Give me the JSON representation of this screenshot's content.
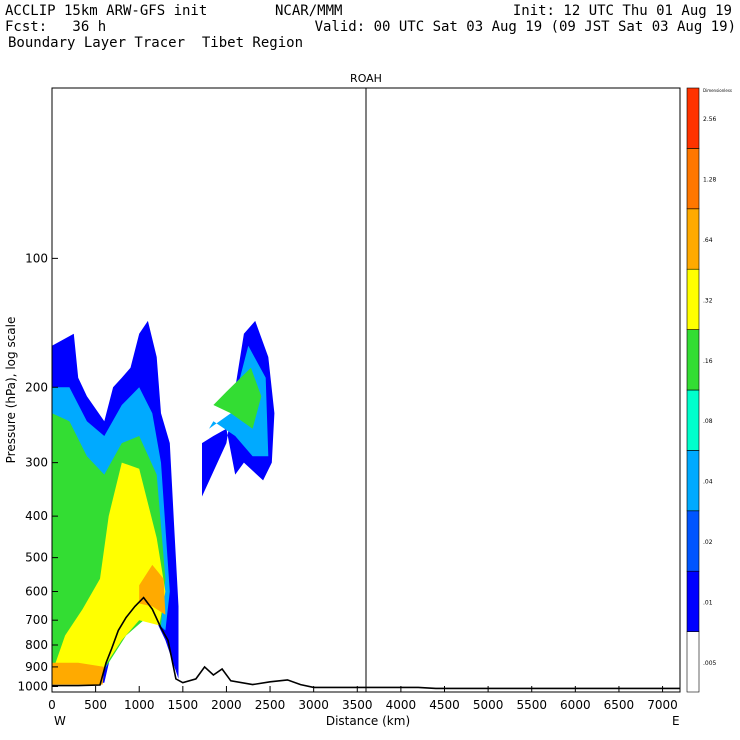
{
  "header": {
    "left_line1": "ACCLIP 15km ARW-GFS init",
    "left_line2": "Fcst:   36 h",
    "left_line3": "Boundary Layer Tracer  Tibet Region",
    "center_line1": "NCAR/MMM",
    "right_line1": "Init: 12 UTC Thu 01 Aug 19",
    "right_line2": "Valid: 00 UTC Sat 03 Aug 19 (09 JST Sat 03 Aug 19)"
  },
  "chart_data": {
    "type": "heatmap",
    "title": "ROAH",
    "xlabel": "Distance (km)",
    "ylabel": "Pressure (hPa), log scale",
    "x_ticks": [
      "0",
      "500",
      "1000",
      "1500",
      "2000",
      "2500",
      "3000",
      "3500",
      "4000",
      "4500",
      "5000",
      "5500",
      "6000",
      "6500",
      "7000"
    ],
    "y_ticks": [
      "100",
      "200",
      "300",
      "400",
      "500",
      "600",
      "700",
      "800",
      "900",
      "1000"
    ],
    "y_scale": "log",
    "xlim": [
      0,
      7200
    ],
    "ylim": [
      1030,
      40
    ],
    "x_end_labels": {
      "left": "W",
      "right": "E"
    },
    "marker_line_x": 3600,
    "colorbar": {
      "title": "Dimensionless",
      "levels": [
        ".005",
        ".01",
        ".02",
        ".04",
        ".08",
        ".16",
        ".32",
        ".64",
        "1.28",
        "2.56"
      ],
      "colors": [
        "#ffffff",
        "#0000ff",
        "#0055ff",
        "#00aaff",
        "#00ffcc",
        "#33dd33",
        "#ffff00",
        "#ffaa00",
        "#ff7700",
        "#ff3300"
      ]
    },
    "terrain_km_hpa": [
      [
        0,
        995
      ],
      [
        300,
        995
      ],
      [
        550,
        992
      ],
      [
        620,
        880
      ],
      [
        680,
        820
      ],
      [
        760,
        740
      ],
      [
        850,
        690
      ],
      [
        950,
        650
      ],
      [
        1050,
        620
      ],
      [
        1150,
        660
      ],
      [
        1250,
        730
      ],
      [
        1330,
        780
      ],
      [
        1420,
        960
      ],
      [
        1500,
        980
      ],
      [
        1650,
        960
      ],
      [
        1750,
        900
      ],
      [
        1850,
        940
      ],
      [
        1950,
        910
      ],
      [
        2050,
        970
      ],
      [
        2300,
        990
      ],
      [
        2500,
        975
      ],
      [
        2700,
        965
      ],
      [
        2850,
        990
      ],
      [
        3000,
        1005
      ],
      [
        4200,
        1005
      ],
      [
        4400,
        1010
      ],
      [
        7200,
        1010
      ]
    ],
    "tracer_regions": [
      {
        "level": ".01",
        "points": [
          [
            0,
            990
          ],
          [
            0,
            160
          ],
          [
            250,
            150
          ],
          [
            300,
            190
          ],
          [
            400,
            210
          ],
          [
            600,
            240
          ],
          [
            700,
            200
          ],
          [
            800,
            190
          ],
          [
            900,
            180
          ],
          [
            1000,
            150
          ],
          [
            1100,
            140
          ],
          [
            1200,
            170
          ],
          [
            1250,
            230
          ],
          [
            1350,
            270
          ],
          [
            1400,
            420
          ],
          [
            1450,
            650
          ],
          [
            1450,
            960
          ],
          [
            1300,
            780
          ],
          [
            1100,
            640
          ],
          [
            900,
            680
          ],
          [
            700,
            800
          ],
          [
            600,
            980
          ]
        ]
      },
      {
        "level": ".04",
        "points": [
          [
            0,
            960
          ],
          [
            0,
            200
          ],
          [
            200,
            200
          ],
          [
            400,
            240
          ],
          [
            600,
            260
          ],
          [
            800,
            220
          ],
          [
            1000,
            200
          ],
          [
            1150,
            230
          ],
          [
            1250,
            300
          ],
          [
            1350,
            600
          ],
          [
            1300,
            740
          ],
          [
            1100,
            680
          ],
          [
            900,
            720
          ],
          [
            700,
            840
          ],
          [
            550,
            960
          ]
        ]
      },
      {
        "level": ".16",
        "points": [
          [
            0,
            940
          ],
          [
            0,
            230
          ],
          [
            200,
            240
          ],
          [
            400,
            290
          ],
          [
            600,
            320
          ],
          [
            800,
            270
          ],
          [
            1000,
            260
          ],
          [
            1200,
            320
          ],
          [
            1300,
            560
          ],
          [
            1250,
            720
          ],
          [
            1050,
            700
          ],
          [
            850,
            760
          ],
          [
            650,
            880
          ],
          [
            500,
            950
          ]
        ]
      },
      {
        "level": ".32",
        "points": [
          [
            0,
            930
          ],
          [
            150,
            760
          ],
          [
            350,
            660
          ],
          [
            550,
            560
          ],
          [
            650,
            400
          ],
          [
            800,
            300
          ],
          [
            1000,
            310
          ],
          [
            1200,
            450
          ],
          [
            1300,
            600
          ],
          [
            1230,
            720
          ],
          [
            1000,
            700
          ],
          [
            800,
            780
          ],
          [
            600,
            900
          ],
          [
            450,
            950
          ]
        ]
      },
      {
        "level": ".64",
        "points": [
          [
            0,
            990
          ],
          [
            0,
            880
          ],
          [
            300,
            880
          ],
          [
            600,
            900
          ],
          [
            580,
            990
          ]
        ]
      },
      {
        "level": ".64",
        "points": [
          [
            1000,
            580
          ],
          [
            1150,
            520
          ],
          [
            1280,
            560
          ],
          [
            1300,
            680
          ],
          [
            1150,
            650
          ],
          [
            1000,
            640
          ]
        ]
      },
      {
        "level": ".01",
        "points": [
          [
            1720,
            360
          ],
          [
            2000,
            270
          ],
          [
            2200,
            150
          ],
          [
            2330,
            140
          ],
          [
            2480,
            170
          ],
          [
            2550,
            230
          ],
          [
            2520,
            300
          ],
          [
            2420,
            330
          ],
          [
            2200,
            300
          ],
          [
            2100,
            320
          ],
          [
            2000,
            250
          ],
          [
            1850,
            260
          ],
          [
            1720,
            270
          ]
        ]
      },
      {
        "level": ".04",
        "points": [
          [
            1800,
            250
          ],
          [
            2050,
            230
          ],
          [
            2250,
            160
          ],
          [
            2450,
            190
          ],
          [
            2480,
            290
          ],
          [
            2300,
            290
          ],
          [
            2100,
            260
          ],
          [
            1850,
            240
          ]
        ]
      },
      {
        "level": ".16",
        "points": [
          [
            1850,
            220
          ],
          [
            2000,
            205
          ],
          [
            2280,
            180
          ],
          [
            2400,
            210
          ],
          [
            2300,
            250
          ],
          [
            2050,
            230
          ]
        ]
      }
    ]
  }
}
